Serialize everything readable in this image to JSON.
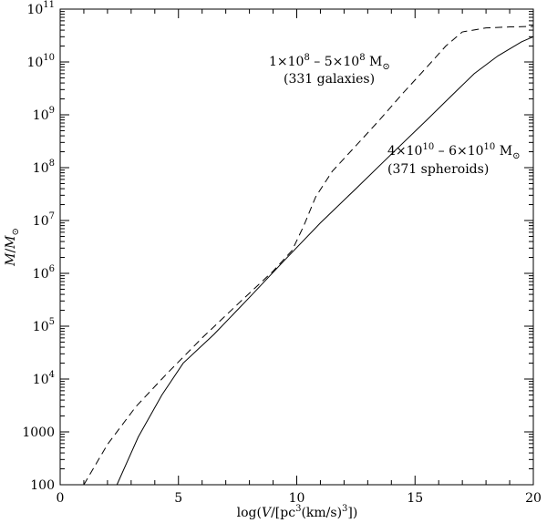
{
  "chart_data": {
    "type": "line",
    "xlabel": {
      "pre": "log(",
      "italic": "V",
      "mid": "/[pc",
      "sup": "3",
      "post": "(km/s)",
      "sup2": "3",
      "end": "])"
    },
    "ylabel": {
      "italic1": "M",
      "slash": "/",
      "italic2": "M",
      "sub": "⊙"
    },
    "xlim": [
      0,
      20
    ],
    "ylim": [
      100,
      100000000000
    ],
    "yscale": "log",
    "x_ticks": [
      {
        "value": 0,
        "label": "0"
      },
      {
        "value": 5,
        "label": "5"
      },
      {
        "value": 10,
        "label": "10"
      },
      {
        "value": 15,
        "label": "15"
      },
      {
        "value": 20,
        "label": "20"
      }
    ],
    "y_ticks": [
      {
        "value": 100,
        "label": "100"
      },
      {
        "value": 1000,
        "label": "1000"
      },
      {
        "value": 10000,
        "base": "10",
        "exp": "4"
      },
      {
        "value": 100000,
        "base": "10",
        "exp": "5"
      },
      {
        "value": 1000000,
        "base": "10",
        "exp": "6"
      },
      {
        "value": 10000000,
        "base": "10",
        "exp": "7"
      },
      {
        "value": 100000000,
        "base": "10",
        "exp": "8"
      },
      {
        "value": 1000000000,
        "base": "10",
        "exp": "9"
      },
      {
        "value": 10000000000,
        "base": "10",
        "exp": "10"
      },
      {
        "value": 100000000000,
        "base": "10",
        "exp": "11"
      }
    ],
    "series": [
      {
        "style": "dashed",
        "annotation": [
          "1×10",
          "8",
          " – 5×10",
          "8",
          " M",
          "⊙",
          "(331 galaxies)"
        ],
        "x": [
          1.0,
          2.0,
          3.2,
          4.5,
          6.0,
          7.5,
          9.0,
          9.8,
          10.3,
          10.8,
          11.5,
          12.5,
          13.5,
          14.5,
          15.5,
          16.3,
          17.0,
          18.0,
          19.0,
          20.0
        ],
        "y": [
          100,
          580,
          3000,
          12500,
          60000,
          260000,
          1100000,
          2700000,
          8000000,
          28000000,
          85000000,
          260000000,
          800000000,
          2600000000,
          8000000000,
          20000000000,
          37000000000,
          44000000000,
          46000000000,
          47000000000
        ]
      },
      {
        "style": "solid",
        "annotation": [
          "4×10",
          "10",
          " – 6×10",
          "10",
          " M",
          "⊙",
          "(371 spheroids)"
        ],
        "x": [
          2.4,
          3.3,
          4.3,
          5.2,
          6.5,
          8.0,
          9.5,
          11.0,
          12.5,
          14.0,
          15.5,
          16.5,
          17.5,
          18.5,
          19.5,
          20.0
        ],
        "y": [
          100,
          800,
          5000,
          20000,
          70000,
          350000,
          1800000,
          9000000,
          40000000,
          180000000,
          800000000,
          2200000000,
          6000000000,
          13000000000,
          24000000000,
          30000000000
        ]
      }
    ]
  }
}
